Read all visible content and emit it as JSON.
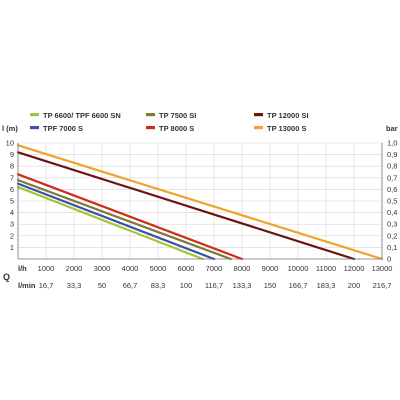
{
  "chart_data": {
    "type": "line",
    "y_left_label": "l (m)",
    "y_right_label": "bar",
    "x_label_lh": "l/h",
    "x_label_lmin": "l/min",
    "q_label": "Q",
    "y_left_ticks": [
      "1",
      "2",
      "3",
      "4",
      "5",
      "6",
      "7",
      "8",
      "9",
      "10"
    ],
    "y_right_ticks": [
      "0",
      "0,1",
      "0,2",
      "0,3",
      "0,4",
      "0,5",
      "0,6",
      "0,7",
      "0,8",
      "0,9",
      "1,0"
    ],
    "x_ticks_lh": [
      "1000",
      "2000",
      "3000",
      "4000",
      "5000",
      "6000",
      "7000",
      "8000",
      "9000",
      "10000",
      "11000",
      "12000",
      "13000"
    ],
    "x_ticks_lmin": [
      "16,7",
      "33,3",
      "50",
      "66,7",
      "83,3",
      "100",
      "116,7",
      "133,3",
      "150",
      "166,7",
      "183,3",
      "200",
      "216,7"
    ],
    "xlim": [
      0,
      13000
    ],
    "ylim": [
      0,
      10
    ],
    "grid": true,
    "legend_position": "top",
    "series": [
      {
        "name": "TP 6600/ TPF 6600 SN",
        "color": "#a6c437",
        "x": [
          0,
          6600
        ],
        "y": [
          6.2,
          0
        ]
      },
      {
        "name": "TPF 7000 S",
        "color": "#3852a4",
        "x": [
          0,
          7000
        ],
        "y": [
          6.5,
          0
        ]
      },
      {
        "name": "TP 7500 SI",
        "color": "#7c7a34",
        "x": [
          0,
          7600
        ],
        "y": [
          6.8,
          0
        ]
      },
      {
        "name": "TP 8000 S",
        "color": "#cf2a1b",
        "x": [
          0,
          8000
        ],
        "y": [
          7.3,
          0
        ]
      },
      {
        "name": "TP 12000 SI",
        "color": "#6b1410",
        "x": [
          0,
          12000
        ],
        "y": [
          9.2,
          0
        ]
      },
      {
        "name": "TP 13000 S",
        "color": "#f0a22b",
        "x": [
          0,
          13000
        ],
        "y": [
          9.8,
          0
        ]
      }
    ]
  }
}
